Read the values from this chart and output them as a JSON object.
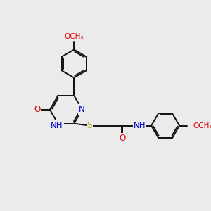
{
  "bg_color": "#ebebeb",
  "atom_color_N": "#0000cc",
  "atom_color_O": "#dd0000",
  "atom_color_S": "#bbaa00",
  "bond_color": "#111111",
  "bond_lw": 1.4,
  "dbo": 0.055,
  "fs": 8.5,
  "fig_size": [
    3.0,
    3.0
  ],
  "dpi": 100,
  "xlim": [
    0,
    9.5
  ],
  "ylim": [
    0.5,
    10.5
  ]
}
